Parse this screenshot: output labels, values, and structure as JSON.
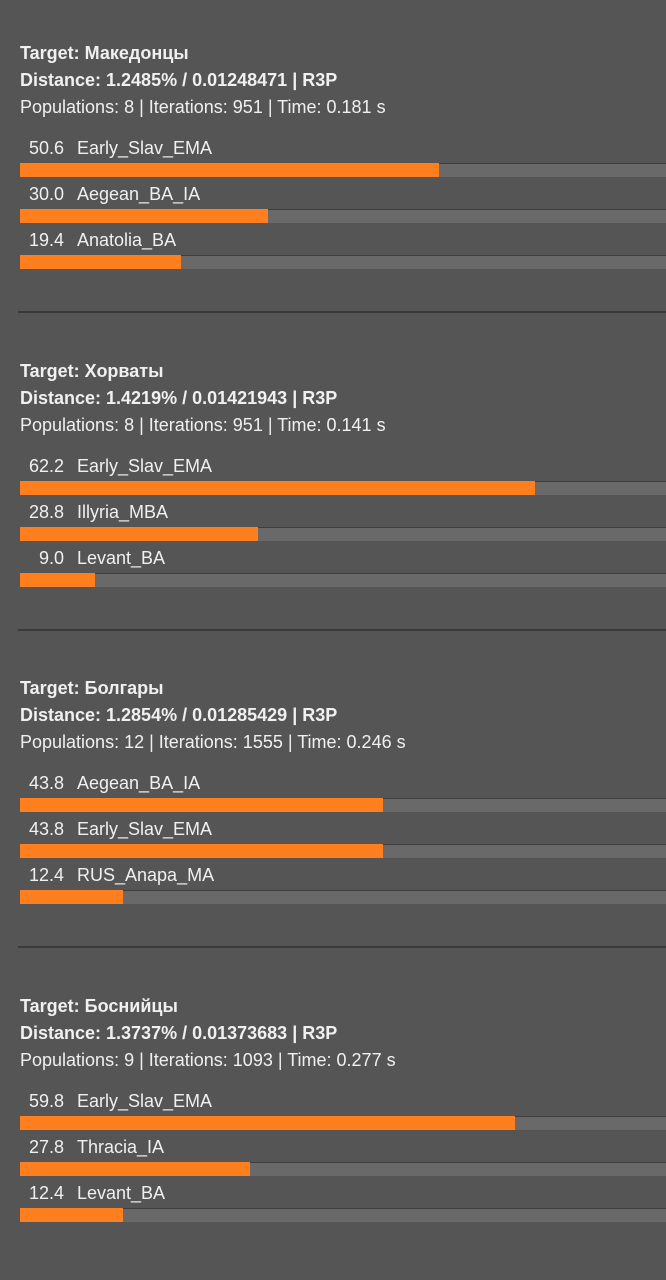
{
  "colors": {
    "background": "#555555",
    "bar_track": "#696969",
    "bar_fill": "#ff7f1e",
    "text": "#f0f0f0",
    "divider": "#3a3a3a"
  },
  "blocks": [
    {
      "target": "Target: Македонцы",
      "distance": "Distance: 1.2485% / 0.01248471 | R3P",
      "info": "Populations: 8 | Iterations: 951 | Time: 0.181 s",
      "rows": [
        {
          "value": "50.6",
          "name": "Early_Slav_EMA",
          "pct": 50.6
        },
        {
          "value": "30.0",
          "name": "Aegean_BA_IA",
          "pct": 30.0
        },
        {
          "value": "19.4",
          "name": "Anatolia_BA",
          "pct": 19.4
        }
      ]
    },
    {
      "target": "Target: Хорваты",
      "distance": "Distance: 1.4219% / 0.01421943 | R3P",
      "info": "Populations: 8 | Iterations: 951 | Time: 0.141 s",
      "rows": [
        {
          "value": "62.2",
          "name": "Early_Slav_EMA",
          "pct": 62.2
        },
        {
          "value": "28.8",
          "name": "Illyria_MBA",
          "pct": 28.8
        },
        {
          "value": "9.0",
          "name": "Levant_BA",
          "pct": 9.0
        }
      ]
    },
    {
      "target": "Target: Болгары",
      "distance": "Distance: 1.2854% / 0.01285429 | R3P",
      "info": "Populations: 12 | Iterations: 1555 | Time: 0.246 s",
      "rows": [
        {
          "value": "43.8",
          "name": "Aegean_BA_IA",
          "pct": 43.8
        },
        {
          "value": "43.8",
          "name": "Early_Slav_EMA",
          "pct": 43.8
        },
        {
          "value": "12.4",
          "name": "RUS_Anapa_MA",
          "pct": 12.4
        }
      ]
    },
    {
      "target": "Target: Боснийцы",
      "distance": "Distance: 1.3737% / 0.01373683 | R3P",
      "info": "Populations: 9 | Iterations: 1093 | Time: 0.277 s",
      "rows": [
        {
          "value": "59.8",
          "name": "Early_Slav_EMA",
          "pct": 59.8
        },
        {
          "value": "27.8",
          "name": "Thracia_IA",
          "pct": 27.8
        },
        {
          "value": "12.4",
          "name": "Levant_BA",
          "pct": 12.4
        }
      ]
    }
  ]
}
